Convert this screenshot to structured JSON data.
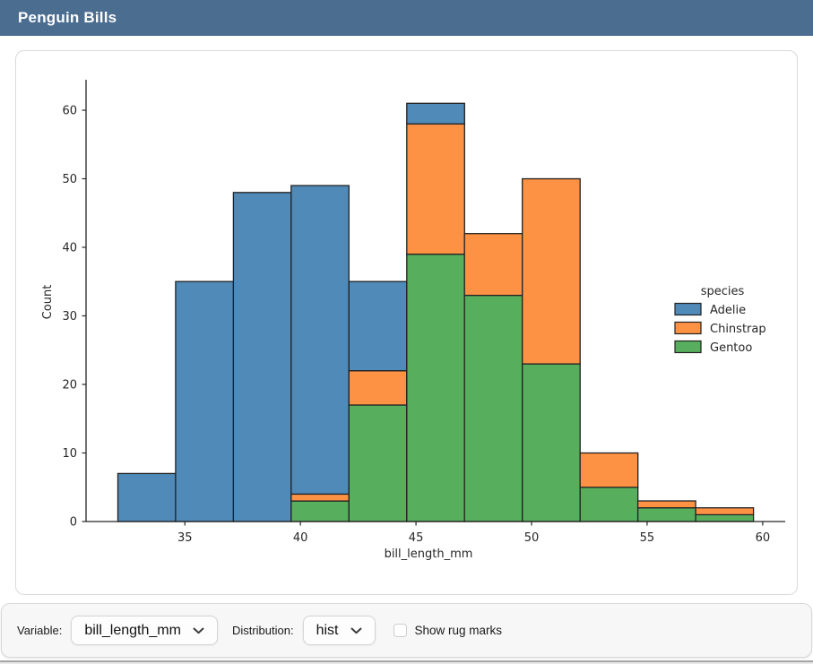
{
  "header": {
    "title": "Penguin Bills"
  },
  "colors": {
    "titlebar_bg": "#4b6d90",
    "adelie_blue": "#4f8ab8",
    "chinstrap_orange": "#fd9245",
    "gentoo_green": "#57ae5d",
    "bar_edge": "#222222",
    "axis": "#262626",
    "card_border": "#d9d9d9",
    "toolbar_bg": "#f7f7f8"
  },
  "chart_data": {
    "type": "bar",
    "subtype": "stacked-histogram",
    "title": "",
    "xlabel": "bill_length_mm",
    "ylabel": "Count",
    "bin_edges": [
      32.1,
      34.6,
      37.1,
      39.6,
      42.1,
      44.6,
      47.1,
      49.6,
      52.1,
      54.6,
      57.1,
      59.6
    ],
    "stack_order": "bottom-to-top",
    "series": [
      {
        "name": "Gentoo",
        "color": "#57ae5d",
        "values": [
          0,
          0,
          0,
          3,
          17,
          39,
          33,
          23,
          5,
          2,
          1
        ]
      },
      {
        "name": "Chinstrap",
        "color": "#fd9245",
        "values": [
          0,
          0,
          0,
          1,
          5,
          19,
          9,
          27,
          5,
          1,
          1
        ]
      },
      {
        "name": "Adelie",
        "color": "#4f8ab8",
        "values": [
          7,
          35,
          48,
          45,
          13,
          3,
          0,
          0,
          0,
          0,
          0
        ]
      }
    ],
    "bin_totals": [
      7,
      35,
      48,
      49,
      35,
      61,
      42,
      50,
      10,
      3,
      2
    ],
    "xticks": [
      35,
      40,
      45,
      50,
      55,
      60
    ],
    "yticks": [
      0,
      10,
      20,
      30,
      40,
      50,
      60
    ],
    "xlim": [
      30.725,
      60.975
    ],
    "ylim": [
      0,
      64.05
    ],
    "grid": false,
    "legend": {
      "title": "species",
      "position": "center-right",
      "entries": [
        {
          "label": "Adelie",
          "color": "#4f8ab8"
        },
        {
          "label": "Chinstrap",
          "color": "#fd9245"
        },
        {
          "label": "Gentoo",
          "color": "#57ae5d"
        }
      ]
    }
  },
  "toolbar": {
    "variable_label": "Variable:",
    "variable_value": "bill_length_mm",
    "distribution_label": "Distribution:",
    "distribution_value": "hist",
    "rug_label": "Show rug marks",
    "rug_checked": false,
    "icons": {
      "variable_select": "chevron-down",
      "distribution_select": "chevron-down"
    }
  }
}
